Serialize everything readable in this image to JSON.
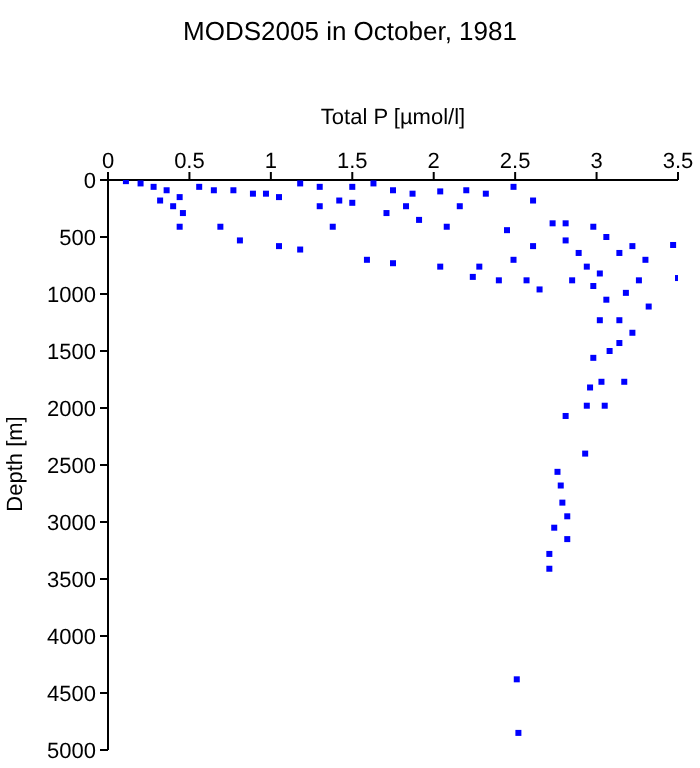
{
  "chart_data": {
    "type": "scatter",
    "title": "MODS2005 in October, 1981",
    "xlabel": "Total P [µmol/l]",
    "ylabel": "Depth [m]",
    "xlim": [
      0,
      3.5
    ],
    "xticks": [
      0,
      0.5,
      1,
      1.5,
      2,
      2.5,
      3,
      3.5
    ],
    "ylim": [
      5000,
      0
    ],
    "yticks": [
      0,
      500,
      1000,
      1500,
      2000,
      2500,
      3000,
      3500,
      4000,
      4500,
      5000
    ],
    "marker": "square",
    "series": [
      {
        "color": "#0000ff",
        "x": [
          0.11,
          0.2,
          0.28,
          0.36,
          0.44,
          0.32,
          0.4,
          0.46,
          0.56,
          0.77,
          0.89,
          1.05,
          1.18,
          1.3,
          1.42,
          1.5,
          1.63,
          1.75,
          1.87,
          2.04,
          2.2,
          2.32,
          2.49,
          2.61,
          0.65,
          0.97,
          1.3,
          1.5,
          1.83,
          2.16,
          0.44,
          0.69,
          0.81,
          1.05,
          1.18,
          1.38,
          1.59,
          1.75,
          1.71,
          1.91,
          2.08,
          2.04,
          2.28,
          2.24,
          2.4,
          2.49,
          2.57,
          2.45,
          2.61,
          2.73,
          2.81,
          2.89,
          2.98,
          3.06,
          2.81,
          2.94,
          3.02,
          3.14,
          3.22,
          3.3,
          3.26,
          3.18,
          3.06,
          2.98,
          2.85,
          2.65,
          3.47,
          3.5,
          3.32,
          3.14,
          3.02,
          3.22,
          3.14,
          3.08,
          2.98,
          3.03,
          3.17,
          2.96,
          2.94,
          3.05,
          2.81,
          2.93,
          2.76,
          2.78,
          2.79,
          2.82,
          2.74,
          2.82,
          2.71,
          2.71,
          2.51,
          2.52
        ],
        "values": [
          10,
          30,
          60,
          90,
          150,
          180,
          230,
          290,
          60,
          90,
          120,
          150,
          30,
          60,
          180,
          60,
          30,
          90,
          120,
          100,
          90,
          120,
          60,
          180,
          90,
          120,
          230,
          200,
          230,
          230,
          410,
          410,
          530,
          580,
          610,
          410,
          700,
          730,
          290,
          350,
          410,
          760,
          760,
          850,
          880,
          700,
          880,
          440,
          580,
          380,
          530,
          640,
          410,
          500,
          380,
          760,
          820,
          640,
          580,
          700,
          880,
          990,
          1050,
          930,
          880,
          960,
          570,
          860,
          1110,
          1230,
          1230,
          1340,
          1430,
          1500,
          1560,
          1770,
          1770,
          1820,
          1980,
          1980,
          2070,
          2400,
          2560,
          2680,
          2830,
          2950,
          3050,
          3150,
          3280,
          3410,
          4380,
          4850
        ]
      }
    ]
  }
}
